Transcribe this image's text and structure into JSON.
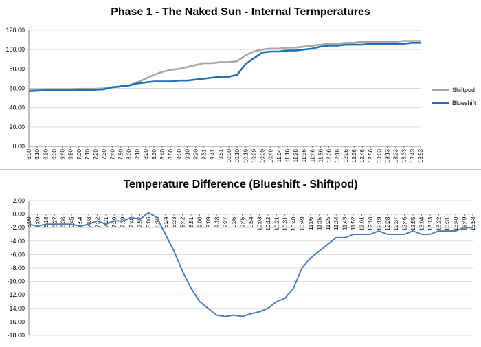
{
  "chart_data": [
    {
      "type": "line",
      "title": "Phase 1 - The Naked Sun - Internal Termperatures",
      "x": [
        "6:00",
        "6:10",
        "6:20",
        "6:30",
        "6:40",
        "6:50",
        "7:00",
        "7:10",
        "7:20",
        "7:30",
        "7:40",
        "7:50",
        "8:00",
        "8:10",
        "8:20",
        "8:30",
        "8:40",
        "8:50",
        "9:00",
        "9:10",
        "9:20",
        "9:31",
        "9:41",
        "9:51",
        "10:00",
        "10:10",
        "10:19",
        "10:29",
        "10:39",
        "10:49",
        "11:04",
        "11:16",
        "11:28",
        "11:36",
        "11:46",
        "11:56",
        "12:06",
        "12:16",
        "12:26",
        "12:36",
        "12:46",
        "12:56",
        "13:03",
        "13:13",
        "13:23",
        "13:33",
        "13:43",
        "13:53"
      ],
      "series": [
        {
          "name": "Shiftpod",
          "color": "#a6a6a6",
          "values": [
            59,
            59,
            59,
            59,
            59,
            59,
            59.5,
            59.5,
            59.5,
            60,
            61,
            62,
            63,
            66,
            70,
            74,
            77,
            79,
            80,
            82,
            84,
            86,
            86,
            87,
            87,
            88,
            94,
            98,
            100,
            101,
            101,
            102,
            102,
            103,
            104,
            105,
            106,
            106,
            107,
            107,
            108,
            108,
            108,
            108,
            108,
            109,
            109,
            109
          ]
        },
        {
          "name": "Blueshift",
          "color": "#1f6fbf",
          "values": [
            57,
            57.5,
            58,
            58,
            58,
            58,
            58,
            58,
            58.5,
            59,
            61,
            62,
            63,
            65,
            66,
            67,
            67,
            67,
            68,
            68,
            69,
            70,
            71,
            72,
            72,
            74,
            85,
            91,
            97,
            98,
            98,
            99,
            99,
            100,
            101,
            103,
            104,
            104,
            105,
            105,
            105,
            106,
            106,
            106,
            106,
            106,
            107,
            107
          ]
        }
      ],
      "xlabel": "",
      "ylabel": "",
      "ylim": [
        0,
        120
      ],
      "yticks": [
        "0.00",
        "20.00",
        "40.00",
        "60.00",
        "80.00",
        "100.00",
        "120.00"
      ],
      "legend": "right",
      "grid": true
    },
    {
      "type": "line",
      "title": "Temperature Difference (Blueshift - Shiftpod)",
      "x": [
        "6:00",
        "6:09",
        "6:18",
        "6:27",
        "6:36",
        "6:45",
        "6:54",
        "7:03",
        "7:12",
        "7:21",
        "7:30",
        "7:39",
        "7:48",
        "7:57",
        "8:06",
        "8:15",
        "8:24",
        "8:33",
        "8:42",
        "8:51",
        "9:00",
        "9:09",
        "9:18",
        "9:27",
        "9:36",
        "9:45",
        "9:54",
        "10:03",
        "10:12",
        "10:21",
        "10:31",
        "10:40",
        "10:49",
        "11:06",
        "11:15",
        "11:25",
        "11:34",
        "11:43",
        "11:52",
        "12:01",
        "12:10",
        "12:19",
        "12:28",
        "12:37",
        "12:46",
        "12:55",
        "13:04",
        "13:13",
        "13:22",
        "13:31",
        "13:40",
        "13:49",
        "13:58"
      ],
      "series": [
        {
          "name": "",
          "color": "#4a7ebb",
          "values": [
            -1.5,
            -1.8,
            -1.5,
            -1.5,
            -1.5,
            -1.5,
            -1.8,
            -1.5,
            -1.0,
            -1.5,
            -1.0,
            -1.0,
            -0.5,
            -0.8,
            0.2,
            -0.5,
            -3.0,
            -5.5,
            -8.5,
            -11.0,
            -13.0,
            -14.0,
            -15.0,
            -15.2,
            -15.0,
            -15.2,
            -14.8,
            -14.5,
            -14.0,
            -13.0,
            -12.5,
            -11.0,
            -8.0,
            -6.5,
            -5.5,
            -4.5,
            -3.5,
            -3.5,
            -3.0,
            -3.0,
            -3.0,
            -2.5,
            -3.0,
            -3.0,
            -3.0,
            -2.5,
            -3.0,
            -3.0,
            -2.5,
            -2.5,
            -2.5,
            -2.0,
            -2.0
          ]
        }
      ],
      "xlabel": "",
      "ylabel": "",
      "ylim": [
        -18,
        2
      ],
      "yticks": [
        "-18.00",
        "-16.00",
        "-14.00",
        "-12.00",
        "-10.00",
        "-8.00",
        "-6.00",
        "-4.00",
        "-2.00",
        "0.00",
        "2.00"
      ],
      "legend": "none",
      "grid": true
    }
  ]
}
